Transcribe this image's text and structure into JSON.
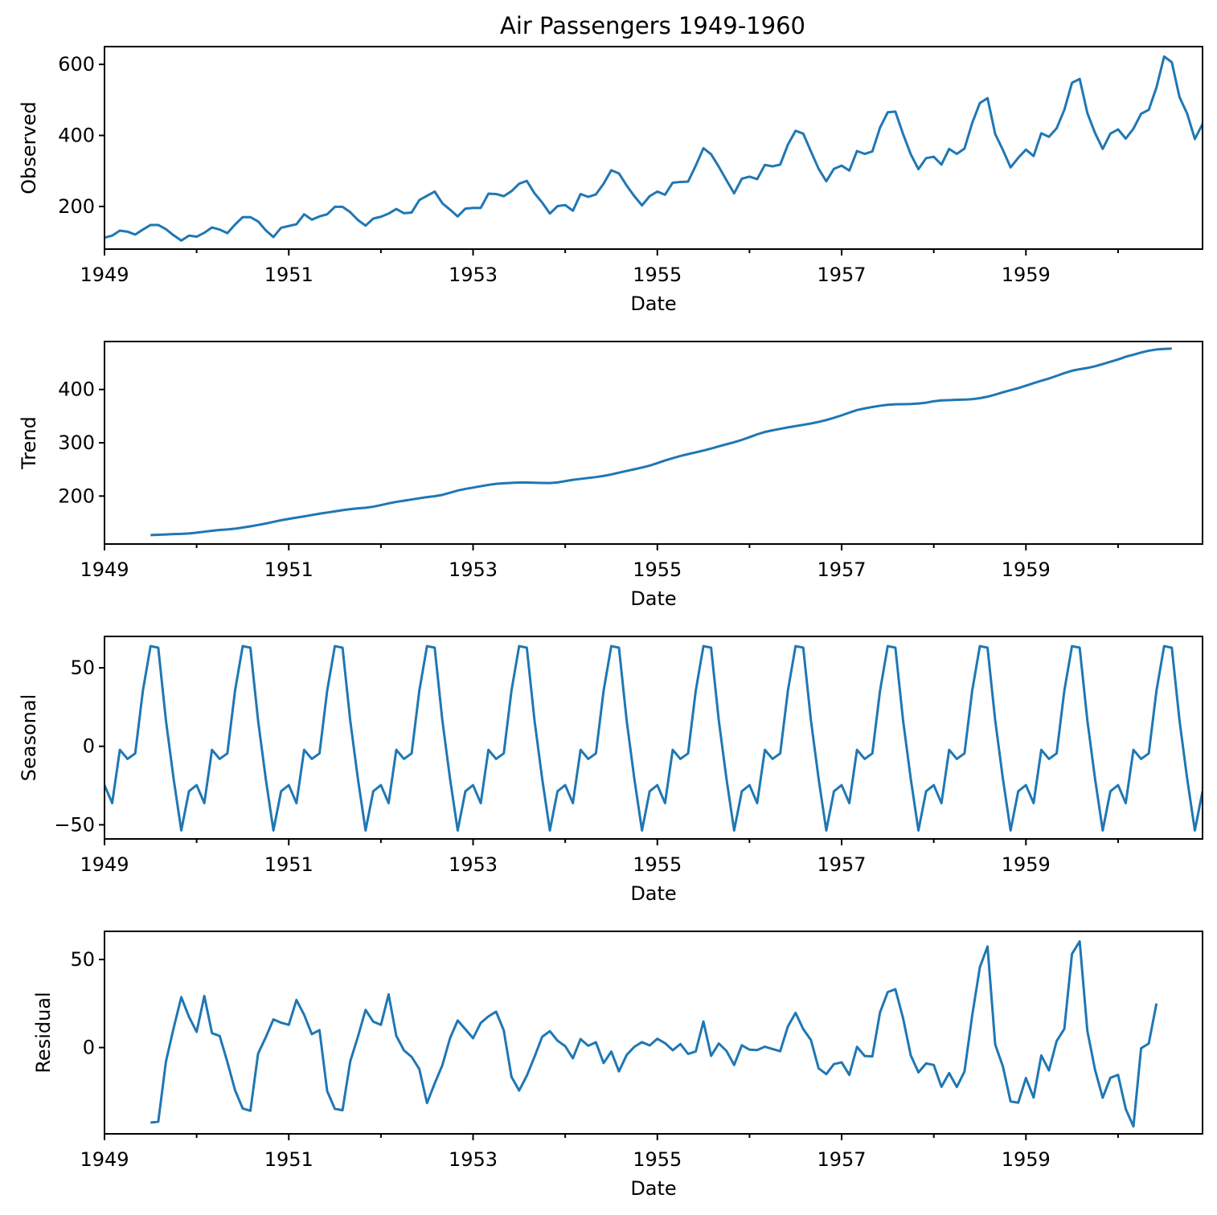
{
  "title": "Air Passengers 1949-1960",
  "colors": {
    "line": "#1f77b4",
    "axes": "#000000"
  },
  "chart_data": [
    {
      "type": "line",
      "id": "observed",
      "title": "Air Passengers 1949-1960",
      "xlabel": "Date",
      "ylabel": "Observed",
      "xlim": [
        "1949-01",
        "1960-12"
      ],
      "xticks": [
        "1949",
        "1951",
        "1953",
        "1955",
        "1957",
        "1959"
      ],
      "ylim": [
        80,
        650
      ],
      "yticks": [
        200,
        400,
        600
      ],
      "x_start": "1949-01",
      "x_freq": "monthly",
      "values": [
        112,
        118,
        132,
        129,
        121,
        135,
        148,
        148,
        136,
        119,
        104,
        118,
        115,
        126,
        141,
        135,
        125,
        149,
        170,
        170,
        158,
        133,
        114,
        140,
        145,
        150,
        178,
        163,
        172,
        178,
        199,
        199,
        184,
        162,
        146,
        166,
        171,
        180,
        193,
        181,
        183,
        218,
        230,
        242,
        209,
        191,
        172,
        194,
        196,
        196,
        236,
        235,
        229,
        243,
        264,
        272,
        237,
        211,
        180,
        201,
        204,
        188,
        235,
        227,
        234,
        264,
        302,
        293,
        259,
        229,
        203,
        229,
        242,
        233,
        267,
        269,
        270,
        315,
        364,
        347,
        312,
        274,
        237,
        278,
        284,
        277,
        317,
        313,
        318,
        374,
        413,
        405,
        355,
        306,
        271,
        306,
        315,
        301,
        356,
        348,
        355,
        422,
        465,
        467,
        404,
        347,
        305,
        336,
        340,
        318,
        362,
        348,
        363,
        435,
        491,
        505,
        404,
        359,
        310,
        337,
        360,
        342,
        406,
        396,
        420,
        472,
        548,
        559,
        463,
        407,
        362,
        405,
        417,
        391,
        419,
        461,
        472,
        535,
        622,
        606,
        508,
        461,
        390,
        432
      ]
    },
    {
      "type": "line",
      "id": "trend",
      "xlabel": "Date",
      "ylabel": "Trend",
      "xlim": [
        "1949-01",
        "1960-12"
      ],
      "xticks": [
        "1949",
        "1951",
        "1953",
        "1955",
        "1957",
        "1959"
      ],
      "ylim": [
        110,
        490
      ],
      "yticks": [
        200,
        300,
        400
      ],
      "x_start": "1949-07",
      "x_freq": "monthly",
      "values": [
        126.8,
        127.3,
        127.96,
        128.58,
        129.0,
        129.75,
        131.25,
        133.08,
        134.92,
        136.42,
        137.42,
        138.75,
        140.92,
        143.17,
        145.71,
        148.42,
        151.54,
        154.71,
        157.13,
        159.54,
        161.83,
        164.38,
        166.96,
        169.08,
        171.25,
        173.58,
        175.46,
        176.83,
        178.04,
        180.04,
        183.04,
        186.21,
        189.04,
        191.29,
        193.58,
        195.83,
        198.04,
        199.75,
        202.21,
        206.25,
        210.42,
        213.38,
        215.83,
        218.5,
        220.92,
        222.92,
        224.08,
        224.71,
        225.33,
        225.33,
        224.96,
        224.58,
        224.46,
        225.54,
        228.0,
        230.46,
        232.25,
        233.92,
        235.62,
        237.75,
        240.5,
        243.96,
        247.17,
        250.25,
        253.5,
        257.12,
        261.83,
        266.67,
        271.12,
        275.21,
        278.71,
        282.0,
        285.42,
        289.12,
        293.25,
        297.17,
        301.0,
        305.46,
        310.5,
        315.83,
        320.21,
        323.38,
        326.08,
        328.79,
        331.29,
        333.62,
        336.17,
        339.12,
        342.62,
        346.79,
        351.46,
        356.58,
        361.38,
        364.5,
        367.17,
        369.46,
        371.21,
        372.17,
        372.42,
        372.75,
        373.62,
        375.25,
        377.92,
        379.5,
        380.0,
        380.71,
        380.96,
        381.83,
        383.67,
        386.5,
        390.33,
        394.71,
        398.62,
        402.54,
        407.17,
        411.88,
        416.33,
        420.5,
        425.5,
        430.71,
        435.12,
        438.04,
        440.38,
        443.58,
        447.71,
        452.0,
        456.33,
        461.38,
        465.21,
        469.33,
        472.75,
        475.04,
        476.08,
        476.88
      ]
    },
    {
      "type": "line",
      "id": "seasonal",
      "xlabel": "Date",
      "ylabel": "Seasonal",
      "xlim": [
        "1949-01",
        "1960-12"
      ],
      "xticks": [
        "1949",
        "1951",
        "1953",
        "1955",
        "1957",
        "1959"
      ],
      "ylim": [
        -59,
        70
      ],
      "yticks": [
        -50,
        0,
        50
      ],
      "x_start": "1949-01",
      "x_freq": "monthly",
      "pattern": [
        -24.75,
        -36.19,
        -2.24,
        -8.04,
        -4.51,
        35.4,
        63.83,
        62.82,
        16.52,
        -20.64,
        -53.59,
        -28.62
      ],
      "cycles": 12
    },
    {
      "type": "line",
      "id": "residual",
      "xlabel": "Date",
      "ylabel": "Residual",
      "xlim": [
        "1949-01",
        "1960-12"
      ],
      "xticks": [
        "1949",
        "1951",
        "1953",
        "1955",
        "1957",
        "1959"
      ],
      "ylim": [
        -49,
        66
      ],
      "yticks": [
        0,
        50
      ],
      "x_start": "1949-07",
      "x_freq": "monthly",
      "values": [
        -42.6,
        -42.1,
        -8.0,
        11.0,
        28.6,
        17.5,
        8.9,
        29.3,
        8.2,
        6.6,
        -8.2,
        -24.2,
        -34.6,
        -35.9,
        -3.5,
        5.8,
        16.0,
        14.1,
        12.9,
        27.0,
        18.6,
        7.6,
        9.9,
        -24.7,
        -34.8,
        -35.6,
        -7.9,
        6.1,
        21.4,
        14.7,
        12.9,
        30.2,
        6.7,
        -1.6,
        -5.3,
        -12.2,
        -31.5,
        -20.4,
        -10.0,
        5.3,
        15.4,
        10.4,
        5.3,
        14.0,
        17.7,
        20.4,
        9.7,
        -16.6,
        -24.4,
        -16.0,
        -5.3,
        6.1,
        9.3,
        3.9,
        0.8,
        -6.1,
        4.8,
        1.0,
        3.0,
        -8.8,
        -2.3,
        -13.5,
        -4.2,
        0.4,
        3.1,
        1.2,
        5.0,
        2.5,
        -1.5,
        2.0,
        -3.6,
        -2.2,
        14.8,
        -4.7,
        2.3,
        -1.9,
        -9.9,
        1.3,
        -1.2,
        -1.4,
        0.5,
        -0.8,
        -2.1,
        12.0,
        19.7,
        10.5,
        4.3,
        -11.8,
        -15.1,
        -9.4,
        -8.4,
        -15.5,
        0.4,
        -4.8,
        -5.0,
        20.0,
        31.5,
        33.1,
        16.7,
        -4.4,
        -14.1,
        -9.0,
        -9.9,
        -22.3,
        -14.5,
        -22.4,
        -13.6,
        18.1,
        45.6,
        57.4,
        1.7,
        -10.7,
        -30.6,
        -31.3,
        -17.3,
        -28.4,
        -4.5,
        -13.0,
        3.7,
        10.6,
        53.2,
        60.3,
        9.5,
        -12.6,
        -28.5,
        -17.2,
        -15.5,
        -34.9,
        -44.8,
        -0.4,
        2.3,
        25.0
      ]
    }
  ]
}
